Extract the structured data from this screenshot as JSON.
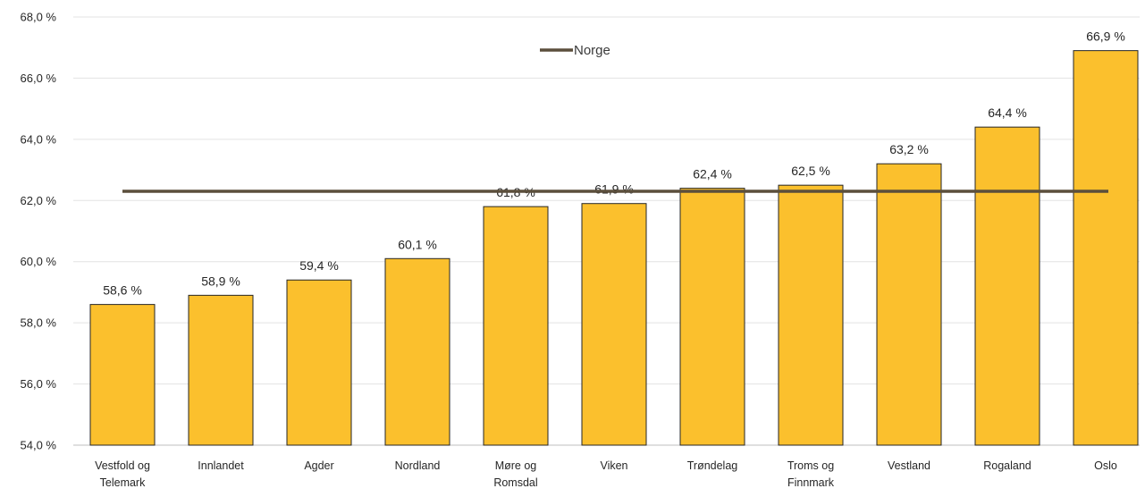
{
  "chart_data": {
    "type": "bar",
    "categories": [
      [
        "Vestfold og",
        "Telemark"
      ],
      [
        "Innlandet"
      ],
      [
        "Agder"
      ],
      [
        "Nordland"
      ],
      [
        "Møre og",
        "Romsdal"
      ],
      [
        "Viken"
      ],
      [
        "Trøndelag"
      ],
      [
        "Troms og",
        "Finnmark"
      ],
      [
        "Vestland"
      ],
      [
        "Rogaland"
      ],
      [
        "Oslo"
      ]
    ],
    "values": [
      58.6,
      58.9,
      59.4,
      60.1,
      61.8,
      61.9,
      62.4,
      62.5,
      63.2,
      64.4,
      66.9
    ],
    "data_labels": [
      "58,6 %",
      "58,9 %",
      "59,4 %",
      "60,1 %",
      "61,8 %",
      "61,9 %",
      "62,4 %",
      "62,5 %",
      "63,2 %",
      "64,4 %",
      "66,9 %"
    ],
    "reference_line": {
      "name": "Norge",
      "value": 62.3,
      "color": "#5b4f3c"
    },
    "bar_color": "#fbc02d",
    "bar_edge_color": "#262626",
    "yticks": [
      54,
      56,
      58,
      60,
      62,
      64,
      66,
      68
    ],
    "ytick_labels": [
      "54,0 %",
      "56,0 %",
      "58,0 %",
      "60,0 %",
      "62,0 %",
      "64,0 %",
      "66,0 %",
      "68,0 %"
    ],
    "ylim": [
      54,
      68
    ],
    "grid": true,
    "legend_position": "top-center",
    "title": "",
    "xlabel": "",
    "ylabel": ""
  }
}
